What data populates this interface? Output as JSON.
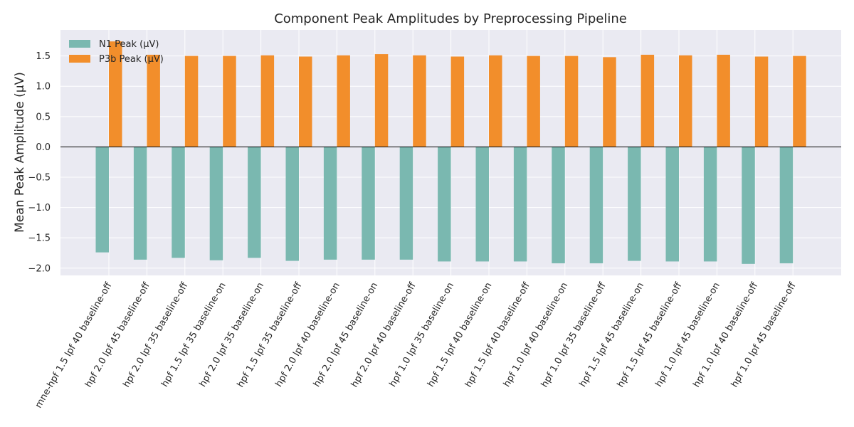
{
  "chart_data": {
    "type": "bar",
    "title": "Component Peak Amplitudes by Preprocessing Pipeline",
    "xlabel": "",
    "ylabel": "Mean Peak Amplitude (µV)",
    "ylim": [
      -2.12,
      1.93
    ],
    "yticks": [
      "-2.0",
      "-1.5",
      "-1.0",
      "-0.5",
      "0.0",
      "0.5",
      "1.0",
      "1.5"
    ],
    "grid": true,
    "legend_position": "top-left",
    "categories": [
      "mne-hpf 1.5 lpf 40 baseline-off",
      "hpf 2.0 lpf 45 baseline-off",
      "hpf 2.0 lpf 35 baseline-off",
      "hpf 1.5 lpf 35 baseline-on",
      "hpf 2.0 lpf 35 baseline-on",
      "hpf 1.5 lpf 35 baseline-off",
      "hpf 2.0 lpf 40 baseline-on",
      "hpf 2.0 lpf 45 baseline-on",
      "hpf 2.0 lpf 40 baseline-off",
      "hpf 1.0 lpf 35 baseline-on",
      "hpf 1.5 lpf 40 baseline-on",
      "hpf 1.5 lpf 40 baseline-off",
      "hpf 1.0 lpf 40 baseline-on",
      "hpf 1.0 lpf 35 baseline-off",
      "hpf 1.5 lpf 45 baseline-on",
      "hpf 1.5 lpf 45 baseline-off",
      "hpf 1.0 lpf 45 baseline-on",
      "hpf 1.0 lpf 40 baseline-off",
      "hpf 1.0 lpf 45 baseline-off"
    ],
    "series": [
      {
        "name": "N1 Peak (µV)",
        "color": "#7ab8b0",
        "values": [
          -1.74,
          -1.86,
          -1.83,
          -1.87,
          -1.83,
          -1.88,
          -1.86,
          -1.86,
          -1.86,
          -1.89,
          -1.89,
          -1.89,
          -1.92,
          -1.92,
          -1.88,
          -1.89,
          -1.89,
          -1.93,
          -1.92
        ]
      },
      {
        "name": "P3b Peak (µV)",
        "color": "#f28e2b",
        "values": [
          1.74,
          1.52,
          1.5,
          1.5,
          1.51,
          1.49,
          1.51,
          1.53,
          1.51,
          1.49,
          1.51,
          1.5,
          1.5,
          1.48,
          1.52,
          1.51,
          1.52,
          1.49,
          1.5
        ]
      }
    ]
  }
}
